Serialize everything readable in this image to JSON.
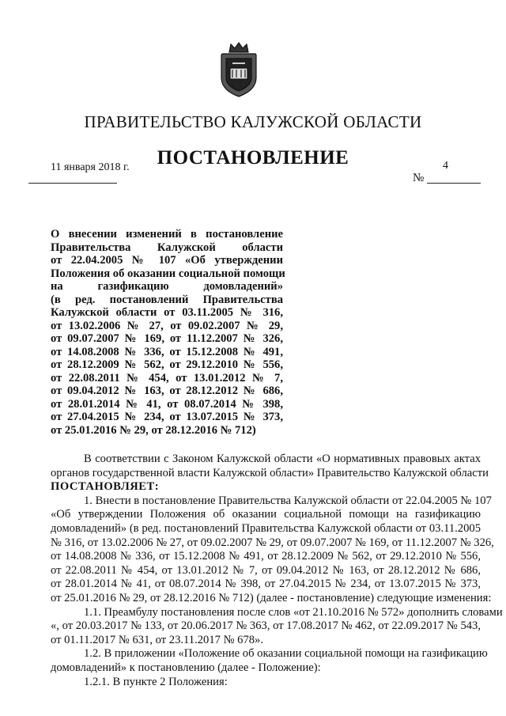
{
  "header": {
    "government": "ПРАВИТЕЛЬСТВО КАЛУЖСКОЙ ОБЛАСТИ",
    "doc_type": "ПОСТАНОВЛЕНИЕ",
    "date": "11 января 2018 г.",
    "number_sign": "№",
    "number": "4",
    "emblem": "kaluga-coat-of-arms"
  },
  "subject": [
    "О внесении изменений в постановление",
    "Правительства Калужской области",
    "от 22.04.2005 № 107 «Об утверждении",
    "Положения об оказании социальной помощи",
    "на газификацию домовладений»",
    "(в ред. постановлений Правительства",
    "Калужской области от 03.11.2005 № 316,",
    "от 13.02.2006 № 27, от 09.02.2007 № 29,",
    "от 09.07.2007 № 169, от 11.12.2007 № 326,",
    "от 14.08.2008 № 336, от 15.12.2008 № 491,",
    "от 28.12.2009 № 562, от 29.12.2010 № 556,",
    "от 22.08.2011 № 454, от 13.01.2012 № 7,",
    "от 09.04.2012 № 163, от 28.12.2012 № 686,",
    "от 28.01.2014 № 41, от 08.07.2014 № 398,",
    "от 27.04.2015 № 234, от 13.07.2015 № 373,",
    "от 25.01.2016 № 29, от 28.12.2016 № 712)"
  ],
  "body": {
    "preamble": [
      "В соответствии с Законом Калужской области «О нормативных правовых актах",
      "органов государственной власти Калужской области» Правительство Калужской области"
    ],
    "resolves": "ПОСТАНОВЛЯЕТ:",
    "p1": [
      "1. Внести в постановление Правительства Калужской области от 22.04.2005 № 107",
      "«Об утверждении Положения об оказании социальной помощи на газификацию",
      "домовладений» (в ред. постановлений Правительства Калужской области от 03.11.2005",
      "№ 316, от 13.02.2006 № 27, от 09.02.2007 № 29, от 09.07.2007 № 169, от 11.12.2007 № 326,",
      "от 14.08.2008 № 336, от 15.12.2008 № 491, от 28.12.2009 № 562, от 29.12.2010 № 556,",
      "от 22.08.2011 № 454, от 13.01.2012 № 7, от 09.04.2012 № 163, от 28.12.2012 № 686,",
      "от 28.01.2014 № 41, от 08.07.2014 № 398, от 27.04.2015 № 234, от 13.07.2015 № 373,",
      "от 25.01.2016 № 29, от 28.12.2016 № 712) (далее - постановление) следующие изменения:"
    ],
    "p11": [
      "1.1. Преамбулу постановления после слов «от 21.10.2016 № 572» дополнить словами",
      "«, от 20.03.2017 № 133, от 20.06.2017 № 363, от 17.08.2017 № 462, от 22.09.2017 № 543,",
      "от 01.11.2017 № 631, от 23.11.2017 № 678»."
    ],
    "p12": [
      "1.2. В приложении «Положение об оказании социальной помощи на газификацию",
      "домовладений» к постановлению (далее - Положение):"
    ],
    "p121": [
      "1.2.1. В пункте 2 Положения:"
    ]
  }
}
